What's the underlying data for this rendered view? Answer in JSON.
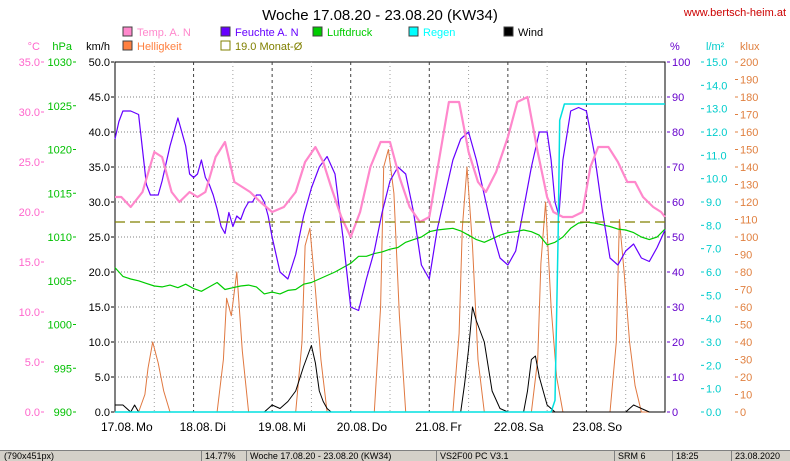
{
  "chart_data": {
    "type": "line",
    "title": "Woche 17.08.20 - 23.08.20 (KW34)",
    "site": "www.bertsch-heim.at",
    "xlim": [
      0,
      7
    ],
    "x_tick_labels": [
      "17.08.",
      "Mo",
      "18.08.",
      "Di",
      "19.08.",
      "Mi",
      "20.08.",
      "Do",
      "21.08.",
      "Fr",
      "22.08.",
      "Sa",
      "23.08.",
      "So"
    ],
    "axes": {
      "temp": {
        "unit": "°C",
        "color": "#ff66cc",
        "range": [
          0,
          35
        ],
        "ticks": [
          "0.0",
          "5.0",
          "10.0",
          "15.0",
          "20.0",
          "25.0",
          "30.0",
          "35.0"
        ]
      },
      "pressure": {
        "unit": "hPa",
        "color": "#00c000",
        "range": [
          990,
          1030
        ],
        "ticks": [
          "990",
          "995",
          "1000",
          "1005",
          "1010",
          "1015",
          "1020",
          "1025",
          "1030"
        ]
      },
      "wind": {
        "unit": "km/h",
        "color": "#000000",
        "range": [
          0,
          50
        ],
        "ticks": [
          "0.0",
          "5.0",
          "10.0",
          "15.0",
          "20.0",
          "25.0",
          "30.0",
          "35.0",
          "40.0",
          "45.0",
          "50.0"
        ]
      },
      "humidity": {
        "unit": "%",
        "color": "#6600cc",
        "range": [
          0,
          100
        ],
        "ticks": [
          "0",
          "10",
          "20",
          "30",
          "40",
          "50",
          "60",
          "70",
          "80",
          "90",
          "100"
        ]
      },
      "rain": {
        "unit": "l/m²",
        "color": "#00cccc",
        "range": [
          0,
          15
        ],
        "ticks": [
          "0.0",
          "1.0",
          "2.0",
          "3.0",
          "4.0",
          "5.0",
          "6.0",
          "7.0",
          "8.0",
          "9.0",
          "10.0",
          "11.0",
          "12.0",
          "13.0",
          "14.0",
          "15.0"
        ]
      },
      "light": {
        "unit": "klux",
        "color": "#e08040",
        "range": [
          0,
          200
        ],
        "ticks": [
          "0",
          "10",
          "20",
          "30",
          "40",
          "50",
          "60",
          "70",
          "80",
          "90",
          "100",
          "110",
          "120",
          "130",
          "140",
          "150",
          "160",
          "170",
          "180",
          "190",
          "200"
        ]
      }
    },
    "legend": [
      {
        "label": "Temp. A. N",
        "color": "#ff88cc",
        "filled": true
      },
      {
        "label": "Feuchte A. N",
        "color": "#6600ff",
        "filled": true
      },
      {
        "label": "Luftdruck",
        "color": "#00cc00",
        "filled": true
      },
      {
        "label": "Regen",
        "color": "#00ffff",
        "filled": true
      },
      {
        "label": "Wind",
        "color": "#000000",
        "filled": true
      },
      {
        "label": "Helligkeit",
        "color": "#ff8040",
        "filled": true
      },
      {
        "label": "19.0 Monat-Ø",
        "color": "#808000",
        "filled": false
      }
    ],
    "monthly_avg_temp": 19.0,
    "series": [
      {
        "name": "Temp. A. N",
        "axis": "temp",
        "color": "#ff88cc",
        "width": 2.2,
        "x": [
          0,
          0.08,
          0.2,
          0.35,
          0.5,
          0.6,
          0.72,
          0.82,
          0.95,
          1.05,
          1.15,
          1.28,
          1.4,
          1.52,
          1.62,
          1.72,
          1.85,
          2.0,
          2.15,
          2.3,
          2.42,
          2.55,
          2.65,
          2.75,
          2.88,
          3.0,
          3.12,
          3.25,
          3.38,
          3.5,
          3.62,
          3.75,
          3.88,
          4.0,
          4.12,
          4.25,
          4.38,
          4.5,
          4.62,
          4.72,
          4.85,
          5.0,
          5.12,
          5.25,
          5.38,
          5.5,
          5.58,
          5.7,
          5.82,
          5.95,
          6.05,
          6.15,
          6.28,
          6.4,
          6.52,
          6.62,
          6.72,
          6.85,
          6.95,
          7.0
        ],
        "y": [
          21.5,
          21.5,
          20.5,
          22,
          26,
          25.5,
          22,
          21,
          22,
          21.5,
          22,
          25.5,
          27,
          23,
          22.5,
          22,
          21,
          20,
          20.5,
          22,
          25,
          26.5,
          25,
          22.5,
          19.5,
          17.5,
          20,
          24.5,
          27,
          27,
          23.5,
          20.5,
          19,
          19.5,
          25,
          31,
          31,
          26,
          23,
          22,
          24,
          27.5,
          31,
          31.5,
          26,
          21.5,
          20,
          19.5,
          19.5,
          20,
          24.5,
          26.5,
          26.5,
          25,
          23,
          23,
          21.5,
          20.5,
          20,
          19.5
        ]
      },
      {
        "name": "Feuchte A. N",
        "axis": "humidity",
        "color": "#6600ff",
        "width": 1.2,
        "x": [
          0,
          0.05,
          0.1,
          0.2,
          0.3,
          0.35,
          0.4,
          0.45,
          0.55,
          0.6,
          0.7,
          0.8,
          0.9,
          0.95,
          1.0,
          1.05,
          1.1,
          1.15,
          1.2,
          1.25,
          1.3,
          1.35,
          1.4,
          1.45,
          1.5,
          1.55,
          1.6,
          1.65,
          1.7,
          1.75,
          1.8,
          1.85,
          1.9,
          1.95,
          2.0,
          2.1,
          2.2,
          2.3,
          2.4,
          2.5,
          2.6,
          2.7,
          2.8,
          2.9,
          3.0,
          3.1,
          3.2,
          3.3,
          3.4,
          3.5,
          3.6,
          3.7,
          3.8,
          3.9,
          4.0,
          4.1,
          4.2,
          4.3,
          4.4,
          4.5,
          4.6,
          4.7,
          4.8,
          4.9,
          5.0,
          5.1,
          5.2,
          5.3,
          5.4,
          5.5,
          5.55,
          5.6,
          5.65,
          5.7,
          5.8,
          5.9,
          6.0,
          6.1,
          6.2,
          6.3,
          6.4,
          6.5,
          6.6,
          6.7,
          6.8,
          6.9,
          7.0
        ],
        "y": [
          78,
          83,
          86,
          86,
          85,
          75,
          65,
          62,
          62,
          66,
          76,
          84,
          76,
          68,
          67,
          68,
          72,
          67,
          65,
          62,
          58,
          53,
          51,
          57,
          53,
          56,
          55,
          58,
          60,
          60,
          62,
          62,
          60,
          56,
          50,
          40,
          38,
          45,
          56,
          64,
          70,
          73,
          68,
          50,
          30,
          29,
          38,
          46,
          57,
          66,
          70,
          68,
          57,
          42,
          38,
          52,
          62,
          72,
          78,
          80,
          72,
          62,
          52,
          44,
          42,
          46,
          58,
          70,
          80,
          80,
          72,
          60,
          56,
          72,
          86,
          87,
          86,
          74,
          58,
          44,
          42,
          46,
          48,
          44,
          43,
          47,
          52
        ]
      },
      {
        "name": "Luftdruck",
        "axis": "pressure",
        "color": "#00cc00",
        "width": 1.2,
        "x": [
          0,
          0.1,
          0.2,
          0.3,
          0.4,
          0.5,
          0.6,
          0.7,
          0.8,
          0.9,
          1.0,
          1.1,
          1.2,
          1.3,
          1.4,
          1.5,
          1.6,
          1.7,
          1.8,
          1.9,
          2.0,
          2.1,
          2.2,
          2.3,
          2.4,
          2.5,
          2.6,
          2.7,
          2.8,
          2.9,
          3.0,
          3.1,
          3.2,
          3.3,
          3.4,
          3.5,
          3.6,
          3.7,
          3.8,
          3.9,
          4.0,
          4.1,
          4.2,
          4.3,
          4.4,
          4.5,
          4.6,
          4.7,
          4.8,
          4.9,
          5.0,
          5.1,
          5.2,
          5.3,
          5.4,
          5.5,
          5.6,
          5.7,
          5.8,
          5.9,
          6.0,
          6.1,
          6.2,
          6.3,
          6.4,
          6.5,
          6.6,
          6.7,
          6.8,
          6.9,
          7.0
        ],
        "y": [
          1006.5,
          1005.5,
          1005.2,
          1005.0,
          1004.7,
          1004.4,
          1004.3,
          1004.5,
          1004.2,
          1004.6,
          1004.1,
          1003.8,
          1004.3,
          1004.8,
          1004.0,
          1004.2,
          1004.4,
          1004.5,
          1004.3,
          1003.5,
          1003.7,
          1003.5,
          1003.9,
          1004.0,
          1004.6,
          1004.8,
          1005.2,
          1005.6,
          1006.0,
          1006.5,
          1007.0,
          1007.8,
          1007.8,
          1008.1,
          1008.3,
          1008.6,
          1008.8,
          1009.4,
          1009.7,
          1010.0,
          1010.6,
          1010.8,
          1010.9,
          1011.0,
          1010.7,
          1010.2,
          1009.7,
          1009.4,
          1009.8,
          1010.2,
          1010.5,
          1010.6,
          1010.8,
          1010.6,
          1010.2,
          1009.1,
          1009.4,
          1010.0,
          1011.0,
          1011.6,
          1011.7,
          1011.6,
          1011.4,
          1011.2,
          1010.9,
          1010.8,
          1010.5,
          1010.0,
          1009.7,
          1010.0,
          1010.9
        ]
      },
      {
        "name": "Regen",
        "axis": "rain",
        "color": "#00e0e0",
        "width": 1.5,
        "x": [
          0,
          5.55,
          5.6,
          5.64,
          5.66,
          5.72,
          5.9,
          7.0
        ],
        "y": [
          0,
          0,
          0.5,
          7.5,
          12.5,
          13.2,
          13.2,
          13.2
        ]
      },
      {
        "name": "Wind",
        "axis": "wind",
        "color": "#000000",
        "width": 1.0,
        "x": [
          0,
          0.1,
          0.2,
          0.25,
          0.3,
          0.4,
          0.5,
          0.55,
          0.6,
          0.7,
          0.8,
          0.9,
          1.0,
          1.1,
          1.2,
          1.3,
          1.4,
          1.45,
          1.5,
          1.6,
          1.7,
          1.8,
          1.9,
          2.0,
          2.1,
          2.2,
          2.3,
          2.4,
          2.5,
          2.55,
          2.6,
          2.65,
          2.7,
          2.75,
          2.8,
          2.9,
          3.0,
          3.1,
          3.2,
          3.3,
          3.4,
          3.5,
          3.6,
          3.7,
          3.8,
          3.9,
          4.0,
          4.1,
          4.2,
          4.25,
          4.3,
          4.35,
          4.4,
          4.45,
          4.5,
          4.55,
          4.6,
          4.7,
          4.8,
          4.9,
          5.0,
          5.1,
          5.2,
          5.25,
          5.3,
          5.35,
          5.4,
          5.5,
          5.6,
          5.7,
          5.8,
          5.9,
          6.0,
          6.1,
          6.2,
          6.3,
          6.4,
          6.5,
          6.6,
          6.7,
          6.8,
          6.9,
          7.0
        ],
        "y": [
          1.0,
          1.0,
          0,
          1.0,
          0,
          0,
          0,
          0,
          0,
          0,
          0,
          0,
          0,
          0,
          0,
          0,
          0,
          0,
          0,
          0,
          0,
          0,
          0,
          1.0,
          0.5,
          1.5,
          3.0,
          6.5,
          9.5,
          7.0,
          3.0,
          1.5,
          0.5,
          0,
          0,
          0,
          0,
          0,
          0,
          0,
          0,
          0,
          0,
          0,
          0,
          0,
          0,
          0,
          0,
          0,
          0,
          0,
          0,
          4.0,
          9.0,
          15.0,
          13.0,
          10.0,
          3.0,
          0.5,
          0,
          0,
          0,
          3.0,
          7.5,
          8.0,
          5.0,
          1.0,
          0,
          0,
          0,
          0,
          0,
          0,
          0,
          0,
          0,
          0,
          1.0,
          0.5,
          0,
          0,
          0
        ]
      },
      {
        "name": "Helligkeit",
        "axis": "light",
        "color": "#e07840",
        "width": 1.0,
        "x": [
          0,
          0.3,
          0.38,
          0.42,
          0.48,
          0.55,
          0.62,
          0.7,
          1.0,
          1.3,
          1.38,
          1.42,
          1.48,
          1.55,
          1.62,
          1.7,
          2.0,
          2.3,
          2.38,
          2.42,
          2.48,
          2.55,
          2.62,
          2.7,
          3.0,
          3.3,
          3.38,
          3.42,
          3.48,
          3.55,
          3.62,
          3.7,
          4.0,
          4.3,
          4.38,
          4.42,
          4.48,
          4.55,
          4.62,
          4.7,
          5.0,
          5.3,
          5.38,
          5.42,
          5.48,
          5.55,
          5.62,
          5.7,
          6.0,
          6.3,
          6.38,
          6.42,
          6.48,
          6.55,
          6.62,
          6.7,
          7.0
        ],
        "y": [
          0,
          0,
          10,
          25,
          40,
          28,
          12,
          0,
          0,
          0,
          30,
          65,
          55,
          80,
          35,
          0,
          0,
          0,
          40,
          95,
          105,
          70,
          30,
          0,
          0,
          0,
          60,
          140,
          150,
          125,
          55,
          0,
          0,
          0,
          45,
          105,
          140,
          95,
          30,
          0,
          0,
          0,
          30,
          85,
          120,
          60,
          20,
          0,
          0,
          0,
          40,
          110,
          80,
          40,
          15,
          0,
          0
        ]
      }
    ]
  },
  "status_bar": [
    "(790x451px)",
    "14.77%",
    "Woche 17.08.20 - 23.08.20 (KW34)",
    "VS2F00 PC V3.1",
    "SRM 6",
    "18:25",
    "23.08.2020"
  ]
}
